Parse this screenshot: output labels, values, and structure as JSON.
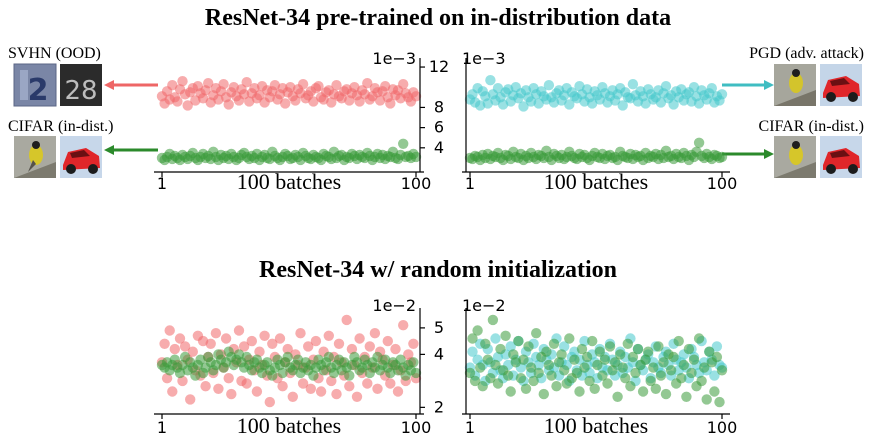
{
  "titles": {
    "top": "ResNet-34 pre-trained on in-distribution data",
    "bottom": "ResNet-34 w/ random initialization"
  },
  "side_labels": {
    "svhn": "SVHN (OOD)",
    "cifar_left": "CIFAR (in-dist.)",
    "pgd": "PGD (adv. attack)",
    "cifar_right": "CIFAR (in-dist.)"
  },
  "colors": {
    "ood_red": "#f0686a",
    "in_dist_green": "#3a9a3a",
    "adv_cyan": "#45c8cc",
    "arrow_red": "#ee6666",
    "arrow_green": "#2b8a2b",
    "arrow_cyan": "#3fbdc2"
  },
  "icons": {
    "svhn_images": [
      "svhn-digit-2-thumbnail",
      "svhn-digit-28-thumbnail"
    ],
    "cifar_images": [
      "bird-thumbnail",
      "red-car-thumbnail"
    ]
  },
  "chart_data": [
    {
      "type": "scatter",
      "panel": "top-left",
      "exponent_label": "1e−3",
      "xlabel": "100 batches",
      "x_ticks": [
        "1",
        "100"
      ],
      "xlim": [
        1,
        100
      ],
      "ylim": [
        2,
        12.5
      ],
      "y_ticks": [
        "4",
        "6",
        "8",
        "12"
      ],
      "y_axis_side": "right",
      "series": [
        {
          "color": "#f0686a",
          "values": [
            9.1,
            8.4,
            9.6,
            8.8,
            10.2,
            9.0,
            8.6,
            9.8,
            10.6,
            9.3,
            8.2,
            9.5,
            9.9,
            8.7,
            10.1,
            9.4,
            8.9,
            9.7,
            10.4,
            8.5,
            9.2,
            9.9,
            8.8,
            9.6,
            10.3,
            9.0,
            8.3,
            9.5,
            10.0,
            9.1,
            8.7,
            9.8,
            9.3,
            10.5,
            8.6,
            9.4,
            9.9,
            8.9,
            9.2,
            10.1,
            8.5,
            9.7,
            9.0,
            9.6,
            10.2,
            8.8,
            9.3,
            9.9,
            8.4,
            9.5,
            10.0,
            9.1,
            8.7,
            9.8,
            9.4,
            10.3,
            8.9,
            9.2,
            9.6,
            8.6,
            9.9,
            10.1,
            9.0,
            8.8,
            9.5,
            9.7,
            8.5,
            9.3,
            10.2,
            9.1,
            8.9,
            9.6,
            9.8,
            8.7,
            9.4,
            10.0,
            9.2,
            8.6,
            9.7,
            9.3,
            10.4,
            8.8,
            9.1,
            9.9,
            9.5,
            8.7,
            9.6,
            10.1,
            9.0,
            8.4,
            9.8,
            9.2,
            9.7,
            8.9,
            10.3,
            9.4,
            9.0,
            8.6,
            9.5,
            9.1
          ]
        },
        {
          "color": "#3a9a3a",
          "values": [
            3.0,
            2.8,
            3.1,
            3.4,
            2.9,
            3.2,
            3.0,
            2.8,
            3.3,
            3.1,
            2.9,
            3.2,
            3.5,
            3.0,
            2.8,
            3.1,
            3.4,
            3.0,
            3.2,
            2.9,
            3.6,
            3.1,
            2.8,
            3.3,
            3.0,
            3.2,
            2.9,
            3.4,
            3.1,
            2.8,
            3.0,
            3.3,
            3.5,
            3.1,
            2.9,
            3.2,
            3.0,
            3.4,
            2.8,
            3.1,
            3.3,
            3.0,
            2.9,
            3.6,
            3.2,
            3.0,
            2.8,
            3.1,
            3.4,
            3.2,
            2.9,
            3.0,
            3.3,
            3.1,
            2.8,
            3.5,
            3.2,
            3.0,
            2.9,
            3.3,
            3.1,
            3.0,
            2.8,
            3.4,
            3.2,
            3.1,
            2.9,
            3.6,
            3.0,
            3.2,
            3.3,
            2.8,
            3.1,
            3.0,
            3.4,
            3.2,
            2.9,
            3.3,
            3.1,
            3.0,
            3.5,
            3.2,
            2.8,
            3.1,
            3.4,
            3.0,
            3.3,
            2.9,
            3.2,
            3.1,
            3.6,
            3.0,
            2.9,
            3.3,
            4.4,
            3.1,
            3.2,
            3.0,
            3.4,
            3.1
          ]
        }
      ]
    },
    {
      "type": "scatter",
      "panel": "top-right",
      "exponent_label": "1e−3",
      "xlabel": "100 batches",
      "x_ticks": [
        "1",
        "100"
      ],
      "xlim": [
        1,
        100
      ],
      "ylim": [
        2,
        12.5
      ],
      "y_ticks": [],
      "series": [
        {
          "color": "#45c8cc",
          "values": [
            8.8,
            9.3,
            8.5,
            9.9,
            8.2,
            9.6,
            9.1,
            8.4,
            10.7,
            9.3,
            8.7,
            9.9,
            9.0,
            8.3,
            9.5,
            9.8,
            8.6,
            9.2,
            10.0,
            8.9,
            9.4,
            8.1,
            9.7,
            9.0,
            8.6,
            9.9,
            9.3,
            8.4,
            9.6,
            9.1,
            8.8,
            10.2,
            9.0,
            8.5,
            9.4,
            9.7,
            8.7,
            9.2,
            9.9,
            8.3,
            9.5,
            9.1,
            8.9,
            10.1,
            9.3,
            8.6,
            9.8,
            9.0,
            8.4,
            9.6,
            9.2,
            8.8,
            10.0,
            9.4,
            8.5,
            9.1,
            9.7,
            8.7,
            9.3,
            9.9,
            8.2,
            9.5,
            9.0,
            8.9,
            10.3,
            9.2,
            8.6,
            9.6,
            9.1,
            8.4,
            9.8,
            9.3,
            8.8,
            9.0,
            9.7,
            8.5,
            9.4,
            10.1,
            8.9,
            9.2,
            8.3,
            9.6,
            9.0,
            9.8,
            8.7,
            9.3,
            9.5,
            8.6,
            10.0,
            9.1,
            8.4,
            9.7,
            9.2,
            8.8,
            9.4,
            9.9,
            8.5,
            9.1,
            8.7,
            9.3
          ]
        },
        {
          "color": "#3a9a3a",
          "values": [
            3.0,
            2.9,
            3.2,
            3.1,
            2.8,
            3.3,
            3.0,
            3.4,
            2.9,
            3.2,
            3.1,
            3.5,
            3.0,
            2.8,
            3.3,
            3.2,
            2.9,
            3.6,
            3.1,
            3.0,
            3.4,
            2.8,
            3.2,
            3.0,
            3.5,
            3.1,
            2.9,
            3.3,
            3.2,
            3.0,
            3.7,
            3.1,
            2.8,
            3.4,
            3.2,
            3.0,
            3.3,
            2.9,
            3.1,
            3.6,
            3.2,
            3.0,
            2.9,
            3.4,
            3.1,
            3.3,
            3.0,
            2.8,
            3.2,
            3.5,
            3.1,
            3.0,
            3.4,
            2.9,
            3.2,
            3.3,
            3.0,
            3.1,
            2.8,
            3.6,
            3.2,
            3.1,
            3.0,
            3.4,
            2.9,
            3.3,
            3.1,
            3.2,
            2.8,
            3.5,
            3.0,
            3.2,
            3.1,
            3.4,
            2.9,
            3.3,
            3.0,
            3.7,
            3.1,
            3.2,
            2.9,
            3.4,
            3.1,
            3.0,
            3.5,
            3.2,
            2.8,
            3.3,
            3.1,
            3.6,
            4.5,
            3.2,
            3.0,
            3.4,
            3.1,
            2.9,
            3.3,
            3.2,
            3.0,
            3.1
          ]
        }
      ]
    },
    {
      "type": "scatter",
      "panel": "bottom-left",
      "exponent_label": "1e−2",
      "xlabel": "100 batches",
      "x_ticks": [
        "1",
        "100"
      ],
      "xlim": [
        1,
        100
      ],
      "ylim": [
        1.9,
        5.6
      ],
      "y_ticks": [
        "2",
        "4",
        "5"
      ],
      "y_axis_side": "right",
      "series": [
        {
          "color": "#f0686a",
          "values": [
            3.7,
            4.4,
            3.1,
            4.9,
            2.6,
            4.2,
            3.6,
            4.6,
            3.0,
            4.3,
            3.8,
            2.3,
            4.1,
            3.4,
            4.7,
            3.2,
            4.5,
            2.8,
            3.9,
            4.4,
            3.3,
            4.8,
            2.7,
            4.0,
            3.5,
            4.6,
            3.1,
            2.5,
            4.2,
            3.7,
            4.9,
            3.0,
            4.3,
            2.9,
            3.8,
            4.5,
            3.4,
            2.6,
            4.1,
            3.6,
            4.7,
            3.2,
            2.2,
            4.4,
            3.9,
            3.1,
            4.6,
            2.8,
            3.7,
            4.2,
            3.3,
            2.4,
            4.0,
            3.6,
            4.8,
            2.9,
            3.5,
            4.3,
            2.7,
            3.8,
            4.5,
            3.1,
            2.6,
            4.1,
            3.4,
            4.7,
            3.0,
            3.9,
            2.5,
            4.4,
            3.7,
            3.2,
            5.3,
            2.8,
            4.2,
            3.6,
            2.4,
            4.6,
            3.3,
            3.9,
            2.9,
            4.3,
            3.5,
            4.8,
            2.7,
            4.1,
            3.8,
            3.2,
            4.5,
            2.9,
            3.6,
            4.2,
            2.6,
            3.4,
            5.1,
            3.0,
            4.0,
            3.7,
            4.4,
            3.1
          ]
        },
        {
          "color": "#3a9a3a",
          "values": [
            3.6,
            3.5,
            3.7,
            3.4,
            3.6,
            3.8,
            3.5,
            3.3,
            3.6,
            3.9,
            3.4,
            3.7,
            3.5,
            3.2,
            3.6,
            3.8,
            3.3,
            3.5,
            3.9,
            3.7,
            3.4,
            3.6,
            4.0,
            3.8,
            3.5,
            3.7,
            4.1,
            3.9,
            3.6,
            3.8,
            4.0,
            3.7,
            3.5,
            3.9,
            3.6,
            3.4,
            3.7,
            3.8,
            3.5,
            3.3,
            3.6,
            3.7,
            3.4,
            3.2,
            3.5,
            3.8,
            3.6,
            3.3,
            3.7,
            3.9,
            3.5,
            3.4,
            3.6,
            3.8,
            3.3,
            3.5,
            3.7,
            3.4,
            3.6,
            3.2,
            3.5,
            3.8,
            3.6,
            3.4,
            3.7,
            3.9,
            3.5,
            3.3,
            3.6,
            3.8,
            3.4,
            3.7,
            3.5,
            3.2,
            3.6,
            3.9,
            3.7,
            3.4,
            3.5,
            3.8,
            3.6,
            3.3,
            3.7,
            3.5,
            3.9,
            3.4,
            3.6,
            3.8,
            3.5,
            3.3,
            3.7,
            3.6,
            3.4,
            3.8,
            3.5,
            3.2,
            3.6,
            3.4,
            3.7,
            3.3
          ]
        }
      ]
    },
    {
      "type": "scatter",
      "panel": "bottom-right",
      "exponent_label": "1e−2",
      "xlabel": "100 batches",
      "x_ticks": [
        "1",
        "100"
      ],
      "xlim": [
        1,
        100
      ],
      "ylim": [
        1.9,
        5.6
      ],
      "y_ticks": [],
      "series": [
        {
          "color": "#45c8cc",
          "values": [
            3.5,
            4.1,
            3.2,
            3.8,
            4.4,
            3.6,
            3.0,
            4.2,
            3.7,
            3.3,
            4.6,
            3.9,
            3.4,
            3.1,
            4.0,
            3.6,
            4.3,
            3.2,
            3.8,
            4.5,
            3.5,
            3.0,
            4.1,
            3.7,
            3.3,
            4.4,
            3.9,
            3.6,
            3.1,
            4.2,
            3.8,
            3.4,
            4.0,
            3.5,
            4.6,
            3.2,
            3.7,
            4.3,
            3.6,
            3.0,
            3.9,
            4.1,
            3.4,
            3.8,
            3.2,
            4.5,
            3.6,
            3.3,
            4.0,
            3.7,
            3.1,
            4.2,
            3.5,
            3.9,
            3.4,
            4.4,
            3.8,
            3.2,
            3.6,
            4.1,
            3.3,
            3.9,
            3.5,
            4.6,
            3.7,
            3.0,
            4.2,
            3.6,
            3.4,
            3.8,
            4.0,
            3.1,
            3.7,
            4.3,
            3.5,
            3.3,
            3.9,
            4.1,
            3.6,
            3.2,
            4.4,
            3.8,
            3.4,
            3.7,
            4.0,
            3.5,
            3.1,
            4.2,
            3.9,
            3.6,
            3.3,
            4.5,
            3.7,
            3.4,
            4.1,
            3.8,
            3.2,
            4.3,
            3.6,
            3.5
          ]
        },
        {
          "color": "#3a9a3a",
          "values": [
            3.3,
            4.6,
            3.0,
            4.9,
            3.5,
            2.8,
            4.4,
            3.8,
            3.1,
            5.3,
            3.6,
            2.9,
            4.2,
            3.4,
            4.7,
            3.2,
            2.6,
            4.0,
            3.7,
            4.5,
            3.1,
            3.8,
            2.7,
            4.3,
            3.5,
            3.0,
            4.8,
            3.3,
            3.9,
            2.5,
            4.1,
            3.6,
            3.2,
            4.4,
            2.8,
            3.7,
            4.0,
            3.4,
            2.9,
            4.6,
            3.1,
            3.8,
            3.3,
            2.6,
            4.2,
            3.5,
            3.9,
            3.0,
            4.5,
            2.7,
            3.6,
            4.1,
            3.2,
            3.8,
            2.9,
            4.3,
            3.4,
            3.7,
            2.4,
            4.0,
            3.5,
            3.1,
            4.4,
            2.8,
            3.9,
            3.3,
            4.2,
            3.6,
            2.6,
            3.8,
            4.1,
            3.0,
            3.5,
            2.7,
            4.3,
            3.2,
            3.7,
            2.5,
            4.0,
            3.4,
            3.9,
            2.9,
            4.5,
            3.1,
            3.6,
            2.4,
            4.2,
            3.3,
            3.8,
            2.8,
            4.6,
            3.0,
            3.5,
            2.3,
            4.1,
            3.7,
            2.6,
            3.9,
            2.2,
            3.4
          ]
        }
      ]
    }
  ]
}
